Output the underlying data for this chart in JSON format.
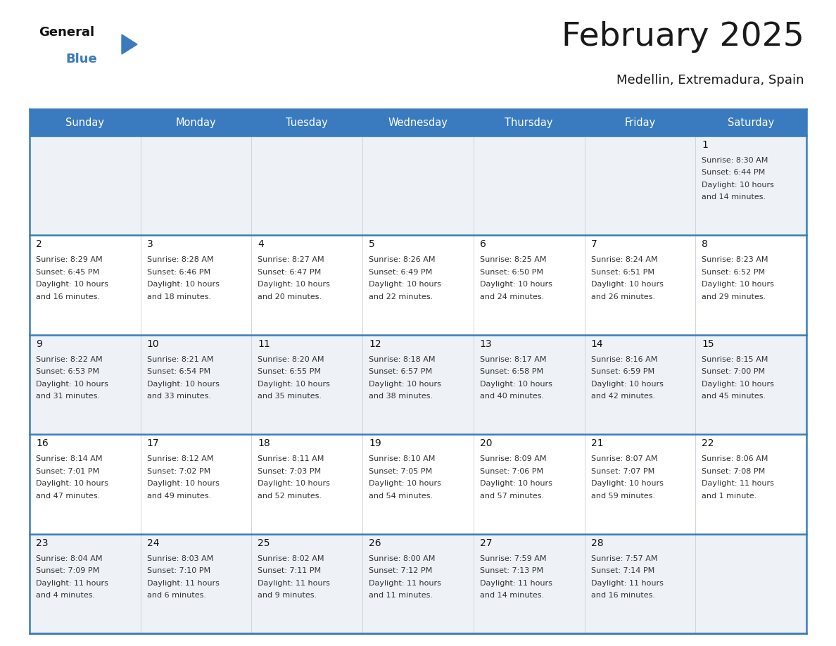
{
  "title": "February 2025",
  "subtitle": "Medellin, Extremadura, Spain",
  "header_color": "#3a7bbf",
  "header_text_color": "#ffffff",
  "cell_bg_even": "#eef2f7",
  "cell_bg_odd": "#ffffff",
  "grid_line_color": "#3a7bbf",
  "day_headers": [
    "Sunday",
    "Monday",
    "Tuesday",
    "Wednesday",
    "Thursday",
    "Friday",
    "Saturday"
  ],
  "title_color": "#1a1a1a",
  "subtitle_color": "#1a1a1a",
  "day_number_color": "#111111",
  "cell_text_color": "#333333",
  "calendar_data": [
    [
      {
        "day": "",
        "lines": []
      },
      {
        "day": "",
        "lines": []
      },
      {
        "day": "",
        "lines": []
      },
      {
        "day": "",
        "lines": []
      },
      {
        "day": "",
        "lines": []
      },
      {
        "day": "",
        "lines": []
      },
      {
        "day": "1",
        "lines": [
          "Sunrise: 8:30 AM",
          "Sunset: 6:44 PM",
          "Daylight: 10 hours",
          "and 14 minutes."
        ]
      }
    ],
    [
      {
        "day": "2",
        "lines": [
          "Sunrise: 8:29 AM",
          "Sunset: 6:45 PM",
          "Daylight: 10 hours",
          "and 16 minutes."
        ]
      },
      {
        "day": "3",
        "lines": [
          "Sunrise: 8:28 AM",
          "Sunset: 6:46 PM",
          "Daylight: 10 hours",
          "and 18 minutes."
        ]
      },
      {
        "day": "4",
        "lines": [
          "Sunrise: 8:27 AM",
          "Sunset: 6:47 PM",
          "Daylight: 10 hours",
          "and 20 minutes."
        ]
      },
      {
        "day": "5",
        "lines": [
          "Sunrise: 8:26 AM",
          "Sunset: 6:49 PM",
          "Daylight: 10 hours",
          "and 22 minutes."
        ]
      },
      {
        "day": "6",
        "lines": [
          "Sunrise: 8:25 AM",
          "Sunset: 6:50 PM",
          "Daylight: 10 hours",
          "and 24 minutes."
        ]
      },
      {
        "day": "7",
        "lines": [
          "Sunrise: 8:24 AM",
          "Sunset: 6:51 PM",
          "Daylight: 10 hours",
          "and 26 minutes."
        ]
      },
      {
        "day": "8",
        "lines": [
          "Sunrise: 8:23 AM",
          "Sunset: 6:52 PM",
          "Daylight: 10 hours",
          "and 29 minutes."
        ]
      }
    ],
    [
      {
        "day": "9",
        "lines": [
          "Sunrise: 8:22 AM",
          "Sunset: 6:53 PM",
          "Daylight: 10 hours",
          "and 31 minutes."
        ]
      },
      {
        "day": "10",
        "lines": [
          "Sunrise: 8:21 AM",
          "Sunset: 6:54 PM",
          "Daylight: 10 hours",
          "and 33 minutes."
        ]
      },
      {
        "day": "11",
        "lines": [
          "Sunrise: 8:20 AM",
          "Sunset: 6:55 PM",
          "Daylight: 10 hours",
          "and 35 minutes."
        ]
      },
      {
        "day": "12",
        "lines": [
          "Sunrise: 8:18 AM",
          "Sunset: 6:57 PM",
          "Daylight: 10 hours",
          "and 38 minutes."
        ]
      },
      {
        "day": "13",
        "lines": [
          "Sunrise: 8:17 AM",
          "Sunset: 6:58 PM",
          "Daylight: 10 hours",
          "and 40 minutes."
        ]
      },
      {
        "day": "14",
        "lines": [
          "Sunrise: 8:16 AM",
          "Sunset: 6:59 PM",
          "Daylight: 10 hours",
          "and 42 minutes."
        ]
      },
      {
        "day": "15",
        "lines": [
          "Sunrise: 8:15 AM",
          "Sunset: 7:00 PM",
          "Daylight: 10 hours",
          "and 45 minutes."
        ]
      }
    ],
    [
      {
        "day": "16",
        "lines": [
          "Sunrise: 8:14 AM",
          "Sunset: 7:01 PM",
          "Daylight: 10 hours",
          "and 47 minutes."
        ]
      },
      {
        "day": "17",
        "lines": [
          "Sunrise: 8:12 AM",
          "Sunset: 7:02 PM",
          "Daylight: 10 hours",
          "and 49 minutes."
        ]
      },
      {
        "day": "18",
        "lines": [
          "Sunrise: 8:11 AM",
          "Sunset: 7:03 PM",
          "Daylight: 10 hours",
          "and 52 minutes."
        ]
      },
      {
        "day": "19",
        "lines": [
          "Sunrise: 8:10 AM",
          "Sunset: 7:05 PM",
          "Daylight: 10 hours",
          "and 54 minutes."
        ]
      },
      {
        "day": "20",
        "lines": [
          "Sunrise: 8:09 AM",
          "Sunset: 7:06 PM",
          "Daylight: 10 hours",
          "and 57 minutes."
        ]
      },
      {
        "day": "21",
        "lines": [
          "Sunrise: 8:07 AM",
          "Sunset: 7:07 PM",
          "Daylight: 10 hours",
          "and 59 minutes."
        ]
      },
      {
        "day": "22",
        "lines": [
          "Sunrise: 8:06 AM",
          "Sunset: 7:08 PM",
          "Daylight: 11 hours",
          "and 1 minute."
        ]
      }
    ],
    [
      {
        "day": "23",
        "lines": [
          "Sunrise: 8:04 AM",
          "Sunset: 7:09 PM",
          "Daylight: 11 hours",
          "and 4 minutes."
        ]
      },
      {
        "day": "24",
        "lines": [
          "Sunrise: 8:03 AM",
          "Sunset: 7:10 PM",
          "Daylight: 11 hours",
          "and 6 minutes."
        ]
      },
      {
        "day": "25",
        "lines": [
          "Sunrise: 8:02 AM",
          "Sunset: 7:11 PM",
          "Daylight: 11 hours",
          "and 9 minutes."
        ]
      },
      {
        "day": "26",
        "lines": [
          "Sunrise: 8:00 AM",
          "Sunset: 7:12 PM",
          "Daylight: 11 hours",
          "and 11 minutes."
        ]
      },
      {
        "day": "27",
        "lines": [
          "Sunrise: 7:59 AM",
          "Sunset: 7:13 PM",
          "Daylight: 11 hours",
          "and 14 minutes."
        ]
      },
      {
        "day": "28",
        "lines": [
          "Sunrise: 7:57 AM",
          "Sunset: 7:14 PM",
          "Daylight: 11 hours",
          "and 16 minutes."
        ]
      },
      {
        "day": "",
        "lines": []
      }
    ]
  ],
  "logo_general_color": "#111111",
  "logo_blue_color": "#3a7bbf",
  "logo_triangle_color": "#3a7bbf"
}
